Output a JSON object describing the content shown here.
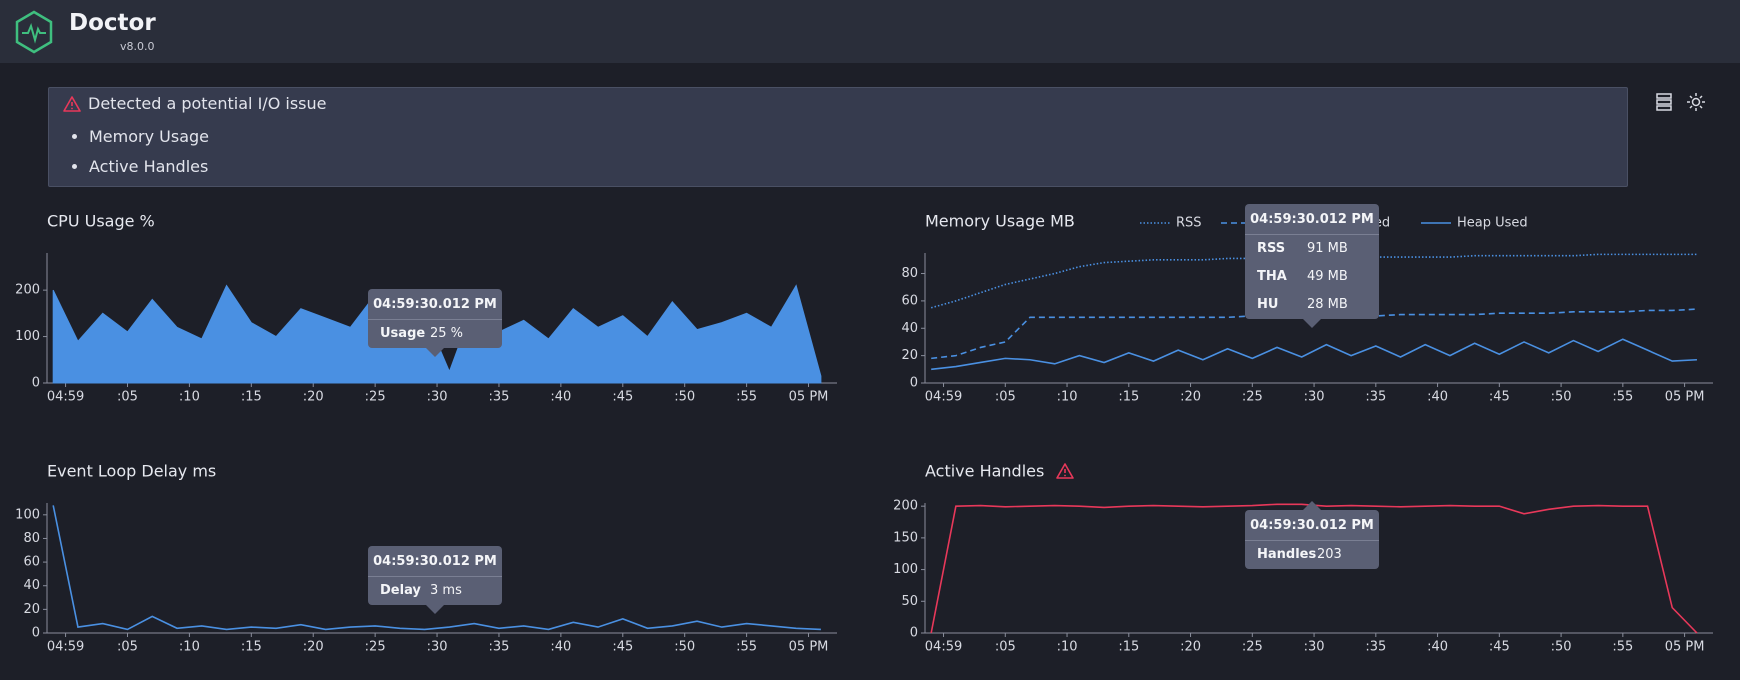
{
  "header": {
    "title": "Doctor",
    "version": "v8.0.0"
  },
  "alert": {
    "title": "Detected a potential I/O issue",
    "items": [
      "Memory Usage",
      "Active Handles"
    ]
  },
  "chart_data": [
    {
      "type": "area",
      "title": "CPU Usage %",
      "x": [
        -1,
        1,
        3,
        5,
        7,
        9,
        11,
        13,
        15,
        17,
        19,
        21,
        23,
        25,
        27,
        29,
        31,
        33,
        35,
        37,
        39,
        41,
        43,
        45,
        47,
        49,
        51,
        53,
        55,
        57,
        59,
        61
      ],
      "series": [
        {
          "name": "Usage",
          "color": "#4a90e2",
          "values": [
            200,
            90,
            150,
            110,
            180,
            120,
            95,
            210,
            130,
            100,
            160,
            140,
            120,
            190,
            105,
            150,
            25,
            170,
            110,
            135,
            95,
            160,
            120,
            145,
            100,
            175,
            115,
            130,
            150,
            120,
            210,
            15
          ]
        }
      ],
      "xlim": [
        -1.5,
        62.3
      ],
      "ylim": [
        0,
        280
      ],
      "yticks": [
        0,
        100,
        200
      ],
      "xticks": [
        {
          "value": 0,
          "label": "04:59"
        },
        {
          "value": 5,
          "label": ":05"
        },
        {
          "value": 10,
          "label": ":10"
        },
        {
          "value": 15,
          "label": ":15"
        },
        {
          "value": 20,
          "label": ":20"
        },
        {
          "value": 25,
          "label": ":25"
        },
        {
          "value": 30,
          "label": ":30"
        },
        {
          "value": 35,
          "label": ":35"
        },
        {
          "value": 40,
          "label": ":40"
        },
        {
          "value": 45,
          "label": ":45"
        },
        {
          "value": 50,
          "label": ":50"
        },
        {
          "value": 55,
          "label": ":55"
        },
        {
          "value": 60,
          "label": "05 PM"
        }
      ],
      "tooltip": {
        "time": "04:59:30.012 PM",
        "rows": [
          {
            "label": "Usage",
            "value": "25 %"
          }
        ]
      }
    },
    {
      "type": "line",
      "title": "Memory Usage MB",
      "legend": true,
      "x": [
        -1,
        1,
        3,
        5,
        7,
        9,
        11,
        13,
        15,
        17,
        19,
        21,
        23,
        25,
        27,
        29,
        31,
        33,
        35,
        37,
        39,
        41,
        43,
        45,
        47,
        49,
        51,
        53,
        55,
        57,
        59,
        61
      ],
      "series": [
        {
          "name": "RSS",
          "color": "#4a90e2",
          "dash": "dotted",
          "values": [
            55,
            60,
            66,
            72,
            76,
            80,
            85,
            88,
            89,
            90,
            90,
            90,
            91,
            91,
            91,
            91,
            91,
            92,
            92,
            92,
            92,
            92,
            93,
            93,
            93,
            93,
            93,
            94,
            94,
            94,
            94,
            94
          ]
        },
        {
          "name": "Total Heap Allocated",
          "color": "#4a90e2",
          "dash": "dashed",
          "values": [
            18,
            20,
            26,
            30,
            48,
            48,
            48,
            48,
            48,
            48,
            48,
            48,
            48,
            49,
            49,
            49,
            49,
            49,
            49,
            50,
            50,
            50,
            50,
            51,
            51,
            51,
            52,
            52,
            52,
            53,
            53,
            54
          ]
        },
        {
          "name": "Heap Used",
          "color": "#4a90e2",
          "dash": "solid",
          "values": [
            10,
            12,
            15,
            18,
            17,
            14,
            20,
            15,
            22,
            16,
            24,
            17,
            25,
            18,
            26,
            19,
            28,
            20,
            27,
            19,
            28,
            20,
            29,
            21,
            30,
            22,
            31,
            23,
            32,
            24,
            16,
            17
          ]
        }
      ],
      "xlim": [
        -1.5,
        62.3
      ],
      "ylim": [
        0,
        95
      ],
      "yticks": [
        0,
        20,
        40,
        60,
        80
      ],
      "xticks": [
        {
          "value": 0,
          "label": "04:59"
        },
        {
          "value": 5,
          "label": ":05"
        },
        {
          "value": 10,
          "label": ":10"
        },
        {
          "value": 15,
          "label": ":15"
        },
        {
          "value": 20,
          "label": ":20"
        },
        {
          "value": 25,
          "label": ":25"
        },
        {
          "value": 30,
          "label": ":30"
        },
        {
          "value": 35,
          "label": ":35"
        },
        {
          "value": 40,
          "label": ":40"
        },
        {
          "value": 45,
          "label": ":45"
        },
        {
          "value": 50,
          "label": ":50"
        },
        {
          "value": 55,
          "label": ":55"
        },
        {
          "value": 60,
          "label": "05 PM"
        }
      ],
      "tooltip": {
        "time": "04:59:30.012 PM",
        "rows": [
          {
            "label": "RSS",
            "value": "91 MB"
          },
          {
            "label": "THA",
            "value": "49 MB"
          },
          {
            "label": "HU",
            "value": "28 MB"
          }
        ]
      }
    },
    {
      "type": "line",
      "title": "Event Loop Delay ms",
      "x": [
        -1,
        1,
        3,
        5,
        7,
        9,
        11,
        13,
        15,
        17,
        19,
        21,
        23,
        25,
        27,
        29,
        31,
        33,
        35,
        37,
        39,
        41,
        43,
        45,
        47,
        49,
        51,
        53,
        55,
        57,
        59,
        61
      ],
      "series": [
        {
          "name": "Delay",
          "color": "#4a90e2",
          "dash": "solid",
          "values": [
            108,
            5,
            8,
            3,
            14,
            4,
            6,
            3,
            5,
            4,
            7,
            3,
            5,
            6,
            4,
            3,
            5,
            8,
            4,
            6,
            3,
            9,
            5,
            12,
            4,
            6,
            10,
            5,
            8,
            6,
            4,
            3
          ]
        }
      ],
      "xlim": [
        -1.5,
        62.3
      ],
      "ylim": [
        0,
        110
      ],
      "yticks": [
        0,
        20,
        40,
        60,
        80,
        100
      ],
      "xticks": [
        {
          "value": 0,
          "label": "04:59"
        },
        {
          "value": 5,
          "label": ":05"
        },
        {
          "value": 10,
          "label": ":10"
        },
        {
          "value": 15,
          "label": ":15"
        },
        {
          "value": 20,
          "label": ":20"
        },
        {
          "value": 25,
          "label": ":25"
        },
        {
          "value": 30,
          "label": ":30"
        },
        {
          "value": 35,
          "label": ":35"
        },
        {
          "value": 40,
          "label": ":40"
        },
        {
          "value": 45,
          "label": ":45"
        },
        {
          "value": 50,
          "label": ":50"
        },
        {
          "value": 55,
          "label": ":55"
        },
        {
          "value": 60,
          "label": "05 PM"
        }
      ],
      "tooltip": {
        "time": "04:59:30.012 PM",
        "rows": [
          {
            "label": "Delay",
            "value": "3 ms"
          }
        ]
      }
    },
    {
      "type": "line",
      "title": "Active Handles",
      "x": [
        -1,
        1,
        3,
        5,
        7,
        9,
        11,
        13,
        15,
        17,
        19,
        21,
        23,
        25,
        27,
        29,
        31,
        33,
        35,
        37,
        39,
        41,
        43,
        45,
        47,
        49,
        51,
        53,
        55,
        57,
        59,
        61
      ],
      "series": [
        {
          "name": "Handles",
          "color": "#e8385a",
          "dash": "solid",
          "values": [
            0,
            200,
            201,
            199,
            200,
            201,
            200,
            198,
            200,
            201,
            200,
            199,
            200,
            201,
            203,
            203,
            200,
            201,
            200,
            199,
            200,
            201,
            200,
            200,
            188,
            195,
            200,
            201,
            200,
            200,
            40,
            0
          ]
        }
      ],
      "xlim": [
        -1.5,
        62.3
      ],
      "ylim": [
        0,
        205
      ],
      "yticks": [
        0,
        50,
        100,
        150,
        200
      ],
      "xticks": [
        {
          "value": 0,
          "label": "04:59"
        },
        {
          "value": 5,
          "label": ":05"
        },
        {
          "value": 10,
          "label": ":10"
        },
        {
          "value": 15,
          "label": ":15"
        },
        {
          "value": 20,
          "label": ":20"
        },
        {
          "value": 25,
          "label": ":25"
        },
        {
          "value": 30,
          "label": ":30"
        },
        {
          "value": 35,
          "label": ":35"
        },
        {
          "value": 40,
          "label": ":40"
        },
        {
          "value": 45,
          "label": ":45"
        },
        {
          "value": 50,
          "label": ":50"
        },
        {
          "value": 55,
          "label": ":55"
        },
        {
          "value": 60,
          "label": "05 PM"
        }
      ],
      "tooltip": {
        "time": "04:59:30.012 PM",
        "rows": [
          {
            "label": "Handles",
            "value": "203"
          }
        ]
      }
    }
  ]
}
